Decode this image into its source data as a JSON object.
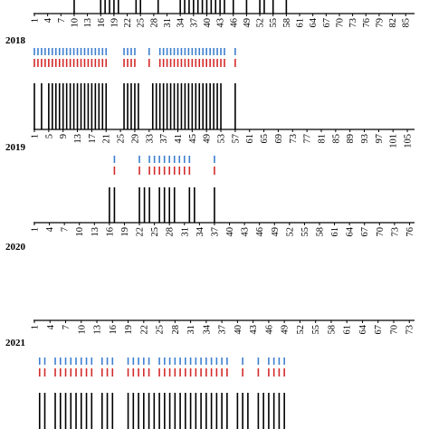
{
  "colors": {
    "blue": "#3d7fd0",
    "red": "#d42a2a",
    "black": "#000000"
  },
  "chart_data": [
    {
      "type": "bar",
      "year": "",
      "ticks": [
        1,
        4,
        7,
        10,
        13,
        16,
        19,
        22,
        25,
        28,
        31,
        34,
        37,
        40,
        43,
        46,
        49,
        52,
        55,
        58,
        61,
        64,
        67,
        70,
        73,
        76,
        79,
        82,
        85
      ],
      "x_max": 87,
      "events": [
        10,
        16,
        17,
        18,
        19,
        20,
        24,
        25,
        29,
        34,
        35,
        36,
        37,
        38,
        39,
        40,
        41,
        42,
        43,
        44,
        46,
        49,
        52,
        53,
        55,
        58
      ],
      "markers": []
    },
    {
      "type": "bar",
      "year": "2018",
      "ticks": [
        1,
        5,
        9,
        13,
        17,
        21,
        25,
        29,
        33,
        37,
        41,
        45,
        49,
        53,
        57,
        61,
        65,
        69,
        73,
        77,
        81,
        85,
        89,
        93,
        97,
        101,
        105
      ],
      "x_max": 107,
      "events": [
        1,
        3,
        5,
        6,
        7,
        8,
        9,
        10,
        11,
        12,
        13,
        14,
        15,
        16,
        17,
        18,
        19,
        20,
        21,
        26,
        27,
        28,
        29,
        30,
        34,
        35,
        36,
        37,
        38,
        39,
        40,
        41,
        42,
        43,
        44,
        45,
        46,
        47,
        48,
        49,
        50,
        51,
        52,
        53,
        57
      ],
      "markers": [
        1,
        2,
        3,
        4,
        5,
        6,
        7,
        8,
        9,
        10,
        11,
        12,
        13,
        14,
        15,
        16,
        17,
        18,
        19,
        20,
        21,
        26,
        27,
        28,
        29,
        33,
        36,
        37,
        38,
        39,
        40,
        41,
        42,
        43,
        44,
        45,
        46,
        47,
        48,
        49,
        50,
        51,
        52,
        53,
        54,
        57
      ]
    },
    {
      "type": "bar",
      "year": "2019",
      "ticks": [
        1,
        4,
        7,
        10,
        13,
        16,
        19,
        22,
        25,
        28,
        31,
        34,
        37,
        40,
        43,
        46,
        49,
        52,
        55,
        58,
        61,
        64,
        67,
        70,
        73,
        76
      ],
      "x_max": 77,
      "events": [
        16,
        17,
        22,
        23,
        24,
        26,
        27,
        28,
        29,
        32,
        33,
        37
      ],
      "markers": [
        17,
        22,
        24,
        25,
        26,
        27,
        28,
        29,
        30,
        31,
        32,
        37
      ]
    },
    {
      "type": "bar",
      "year": "2020",
      "ticks": [
        1,
        4,
        7,
        10,
        13,
        16,
        19,
        22,
        25,
        28,
        31,
        34,
        37,
        40,
        43,
        46,
        49,
        52,
        55,
        58,
        61,
        64,
        67,
        70,
        73
      ],
      "x_max": 74,
      "events": [],
      "markers": []
    },
    {
      "type": "bar",
      "year": "2021",
      "ticks": [],
      "x_max": 74,
      "events": [
        2,
        3,
        5,
        6,
        7,
        8,
        9,
        10,
        11,
        12,
        14,
        15,
        16,
        19,
        20,
        21,
        22,
        23,
        24,
        25,
        26,
        27,
        28,
        29,
        30,
        31,
        32,
        33,
        34,
        35,
        36,
        37,
        38,
        40,
        41,
        42,
        44,
        45,
        46,
        47,
        48,
        49
      ],
      "markers": [
        2,
        3,
        5,
        6,
        7,
        8,
        9,
        10,
        11,
        12,
        14,
        15,
        16,
        19,
        20,
        21,
        22,
        23,
        25,
        26,
        27,
        28,
        29,
        30,
        31,
        32,
        33,
        34,
        35,
        36,
        37,
        38,
        41,
        44,
        46,
        47,
        48,
        49
      ]
    }
  ]
}
